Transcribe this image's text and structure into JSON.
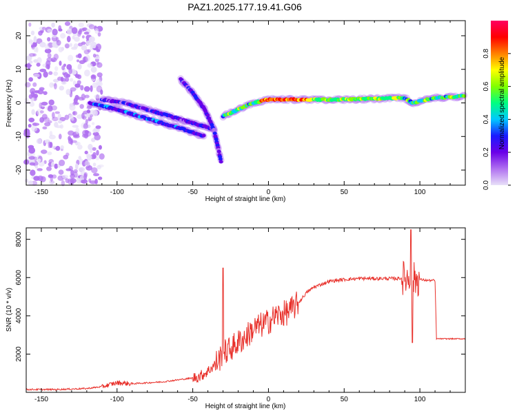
{
  "figure": {
    "title": "PAZ1.2025.177.19.41.G06"
  },
  "chart_data": [
    {
      "type": "heatmap",
      "xlabel": "Height of straight line (km)",
      "ylabel": "Frequency (Hz)",
      "xlim": [
        -160,
        130
      ],
      "ylim": [
        -24.5,
        24.5
      ],
      "xticks": [
        -150,
        -100,
        -50,
        0,
        50,
        100
      ],
      "yticks": [
        20,
        10,
        0,
        -10,
        -20
      ],
      "colorbar": {
        "label": "Normalized spectral amplitude",
        "range": [
          0.0,
          1.0
        ],
        "ticks": [
          0.0,
          0.2,
          0.4,
          0.6,
          0.8
        ],
        "tick_labels": [
          "0.0",
          "0.2",
          "0.4",
          "0.6",
          "0.8"
        ],
        "colormap": [
          "#e8e0f8",
          "#b070f0",
          "#6a00e8",
          "#1a1aff",
          "#00c8ff",
          "#00ff80",
          "#80ff00",
          "#ffff00",
          "#ff8000",
          "#ff0000",
          "#ff0060"
        ]
      },
      "features": [
        {
          "name": "noise-cloud",
          "x_range": [
            -160,
            -110
          ],
          "y_range": [
            -24,
            24
          ],
          "amplitude": 0.2
        },
        {
          "name": "branch-lower",
          "points": [
            [
              -118,
              0
            ],
            [
              -100,
              -2
            ],
            [
              -85,
              -4
            ],
            [
              -70,
              -6
            ],
            [
              -55,
              -8
            ],
            [
              -42,
              -10
            ]
          ],
          "amplitude": 0.35
        },
        {
          "name": "branch-upper",
          "points": [
            [
              -110,
              1
            ],
            [
              -95,
              0
            ],
            [
              -80,
              -2
            ],
            [
              -65,
              -4
            ],
            [
              -50,
              -6
            ],
            [
              -35,
              -8
            ]
          ],
          "amplitude": 0.3
        },
        {
          "name": "branch-steep",
          "points": [
            [
              -58,
              7
            ],
            [
              -50,
              3
            ],
            [
              -42,
              -2
            ],
            [
              -36,
              -8
            ],
            [
              -33,
              -14
            ],
            [
              -31,
              -18
            ]
          ],
          "amplitude": 0.3
        },
        {
          "name": "main-ridge",
          "points": [
            [
              -30,
              -4
            ],
            [
              -20,
              -2
            ],
            [
              -10,
              0
            ],
            [
              0,
              1
            ],
            [
              20,
              1
            ],
            [
              50,
              1
            ],
            [
              90,
              1.5
            ],
            [
              95,
              0
            ],
            [
              110,
              1.5
            ],
            [
              130,
              2
            ]
          ],
          "amplitude": 0.6
        }
      ]
    },
    {
      "type": "line",
      "xlabel": "Height of straight line (km)",
      "ylabel": "SNR (10 * v/v)",
      "xlim": [
        -160,
        130
      ],
      "ylim": [
        0,
        8600
      ],
      "xticks": [
        -150,
        -100,
        -50,
        0,
        50,
        100
      ],
      "yticks": [
        2000,
        4000,
        6000,
        8000
      ],
      "series": [
        {
          "color": "#e8302a",
          "x": [
            -160,
            -140,
            -120,
            -110,
            -100,
            -90,
            -80,
            -70,
            -60,
            -50,
            -45,
            -40,
            -35,
            -30,
            -25,
            -20,
            -15,
            -10,
            -5,
            0,
            5,
            10,
            15,
            20,
            25,
            30,
            40,
            50,
            60,
            70,
            80,
            85,
            90,
            95,
            100,
            105,
            110,
            111,
            115,
            120,
            130
          ],
          "y": [
            150,
            150,
            200,
            300,
            500,
            450,
            500,
            550,
            650,
            750,
            850,
            1100,
            1500,
            2000,
            2300,
            2600,
            2900,
            3300,
            3500,
            3700,
            4000,
            4100,
            4300,
            4700,
            5200,
            5500,
            5800,
            5900,
            5950,
            5950,
            5950,
            5950,
            6000,
            5950,
            5900,
            5850,
            5850,
            2800,
            2800,
            2800,
            2800
          ]
        }
      ]
    }
  ]
}
